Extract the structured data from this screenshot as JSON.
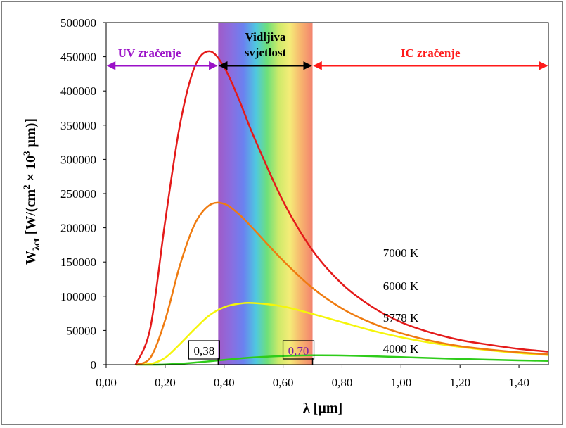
{
  "chart_data": {
    "type": "line",
    "xlabel": "λ [µm]",
    "ylabel": {
      "main": "W",
      "sub": "λct",
      "unit_prefix": " [W/(cm",
      "sup2": "2",
      "times": " × 10",
      "sup3": "3",
      "unit_suffix": " µm)]"
    },
    "xlim": [
      0,
      1.5
    ],
    "ylim": [
      0,
      500000
    ],
    "x_ticks": [
      "0,00",
      "0,20",
      "0,40",
      "0,60",
      "0,80",
      "1,00",
      "1,20",
      "1,40"
    ],
    "x_tick_values": [
      0,
      0.2,
      0.4,
      0.6,
      0.8,
      1.0,
      1.2,
      1.4
    ],
    "y_ticks": [
      "0",
      "50000",
      "100000",
      "150000",
      "200000",
      "250000",
      "300000",
      "350000",
      "400000",
      "450000",
      "500000"
    ],
    "y_tick_values": [
      0,
      50000,
      100000,
      150000,
      200000,
      250000,
      300000,
      350000,
      400000,
      450000,
      500000
    ],
    "grid": {
      "horizontal": false,
      "vertical": false
    },
    "regions": {
      "uv": {
        "label": "UV zračenje",
        "color": "#9b10c8",
        "from": 0,
        "to": 0.38
      },
      "visible": {
        "label_line1": "Vidljiva",
        "label_line2": "svjetlost",
        "color": "#000000",
        "from": 0.38,
        "to": 0.7
      },
      "ir": {
        "label": "IC zračenje",
        "color": "#ff1a1a",
        "from": 0.7,
        "to": 1.5
      },
      "arrow_level": 437000
    },
    "markers": [
      {
        "label": "0,38",
        "x": 0.38,
        "color": "#000000"
      },
      {
        "label": "0,70",
        "x": 0.7,
        "color": "#7a1fa2"
      }
    ],
    "series": [
      {
        "name": "7000 K",
        "color": "#e41a1a",
        "x": [
          0.1,
          0.15,
          0.2,
          0.25,
          0.3,
          0.35,
          0.4,
          0.45,
          0.5,
          0.6,
          0.7,
          0.8,
          0.9,
          1.0,
          1.1,
          1.2,
          1.3,
          1.4,
          1.5
        ],
        "values": [
          0,
          54000,
          209000,
          350000,
          435000,
          458000,
          435000,
          388000,
          334000,
          239000,
          167000,
          118000,
          85000,
          62000,
          47000,
          36000,
          29000,
          23000,
          19000
        ]
      },
      {
        "name": "6000 K",
        "color": "#ef7b10",
        "x": [
          0.1,
          0.15,
          0.2,
          0.25,
          0.3,
          0.35,
          0.4,
          0.45,
          0.5,
          0.6,
          0.7,
          0.8,
          0.9,
          1.0,
          1.1,
          1.2,
          1.3,
          1.4,
          1.5
        ],
        "values": [
          0,
          10000,
          65000,
          145000,
          205000,
          233000,
          235000,
          220000,
          198000,
          152000,
          112000,
          82000,
          61000,
          46000,
          35000,
          27000,
          22000,
          18000,
          15000
        ]
      },
      {
        "name": "5778 K",
        "color": "#f5f50a",
        "x": [
          0.1,
          0.15,
          0.2,
          0.25,
          0.3,
          0.35,
          0.4,
          0.45,
          0.5,
          0.6,
          0.7,
          0.8,
          0.9,
          1.0,
          1.1,
          1.2,
          1.3,
          1.4,
          1.5
        ],
        "values": [
          0,
          1000,
          10000,
          30000,
          52000,
          72000,
          84000,
          89000,
          90000,
          85000,
          74000,
          62000,
          50000,
          40000,
          32000,
          26000,
          21000,
          17000,
          14000
        ]
      },
      {
        "name": "4000 K",
        "color": "#2ecc1a",
        "x": [
          0.1,
          0.15,
          0.2,
          0.25,
          0.3,
          0.35,
          0.4,
          0.45,
          0.5,
          0.6,
          0.7,
          0.8,
          0.9,
          1.0,
          1.1,
          1.2,
          1.3,
          1.4,
          1.5
        ],
        "values": [
          0,
          30,
          300,
          1300,
          2900,
          4900,
          7000,
          8900,
          10600,
          12600,
          13600,
          13400,
          12400,
          11000,
          9600,
          8300,
          7200,
          6200,
          5400
        ]
      }
    ]
  }
}
